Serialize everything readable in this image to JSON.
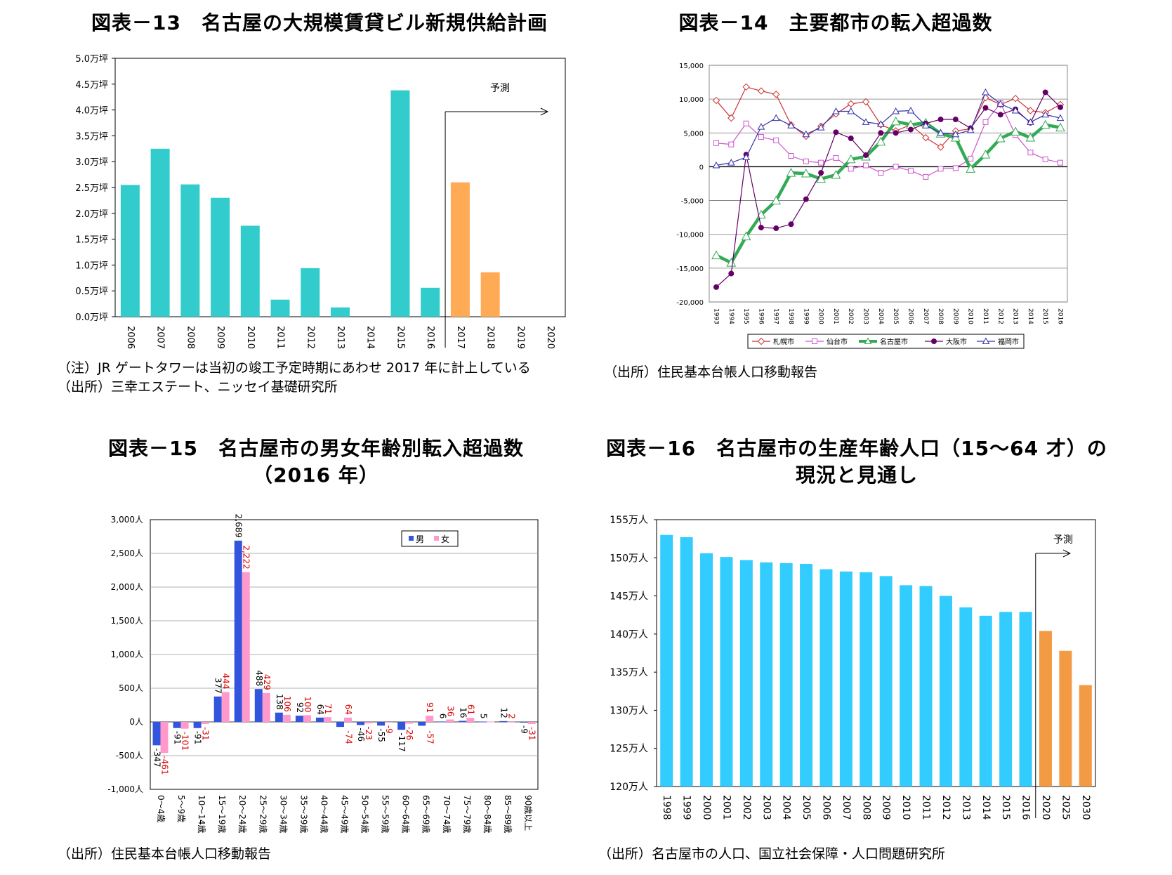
{
  "charts": [
    {
      "id": "fig13",
      "title": "図表－13　名古屋の大規模賃貸ビル新規供給計画",
      "forecast_label": "予測",
      "notes": [
        "（注）JR ゲートタワーは当初の竣工予定時期にあわせ 2017 年に計上している",
        "（出所）三幸エステート、ニッセイ基礎研究所"
      ]
    },
    {
      "id": "fig14",
      "title": "図表－14　主要都市の転入超過数",
      "notes": [
        "（出所）住民基本台帳人口移動報告"
      ]
    },
    {
      "id": "fig15",
      "title_lines": [
        "図表－15　名古屋市の男女年齢別転入超過数",
        "（2016 年）"
      ],
      "notes": [
        "（出所）住民基本台帳人口移動報告"
      ]
    },
    {
      "id": "fig16",
      "title_lines": [
        "図表－16　名古屋市の生産年齢人口（15～64 才）の",
        "現況と見通し"
      ],
      "forecast_label": "予測",
      "notes": [
        "（出所）名古屋市の人口、国立社会保障・人口問題研究所"
      ]
    }
  ],
  "chart_data": [
    {
      "type": "bar",
      "categories": [
        "2006",
        "2007",
        "2008",
        "2009",
        "2010",
        "2011",
        "2012",
        "2013",
        "2014",
        "2015",
        "2016",
        "2017",
        "2018",
        "2019",
        "2020"
      ],
      "values": [
        2.55,
        3.25,
        2.56,
        2.3,
        1.76,
        0.33,
        0.94,
        0.18,
        0,
        4.38,
        0.56,
        2.6,
        0.86,
        0,
        0
      ],
      "forecast_from": "2017",
      "yticks": [
        "0.0万坪",
        "0.5万坪",
        "1.0万坪",
        "1.5万坪",
        "2.0万坪",
        "2.5万坪",
        "3.0万坪",
        "3.5万坪",
        "4.0万坪",
        "4.5万坪",
        "5.0万坪"
      ],
      "ylim": [
        0,
        5
      ],
      "colors": {
        "actual": "#33CCCC",
        "forecast": "#FFAA55"
      }
    },
    {
      "type": "line",
      "x": [
        "1993",
        "1994",
        "1995",
        "1996",
        "1997",
        "1998",
        "1999",
        "2000",
        "2001",
        "2002",
        "2003",
        "2004",
        "2005",
        "2006",
        "2007",
        "2008",
        "2009",
        "2010",
        "2011",
        "2012",
        "2013",
        "2014",
        "2015",
        "2016"
      ],
      "ylim": [
        -20000,
        15000
      ],
      "yticks": [
        "-20,000",
        "-15,000",
        "-10,000",
        "-5,000",
        "0",
        "5,000",
        "10,000",
        "15,000"
      ],
      "legend_position": "bottom",
      "series": [
        {
          "name": "札幌市",
          "color": "#CC3333",
          "marker": "diamond",
          "values": [
            9800,
            7200,
            11800,
            11200,
            10700,
            6200,
            4500,
            6000,
            7800,
            9300,
            9600,
            6200,
            5300,
            6200,
            4300,
            2900,
            5300,
            5600,
            10200,
            9200,
            10100,
            8300,
            8000,
            9200
          ]
        },
        {
          "name": "仙台市",
          "color": "#CC55CC",
          "marker": "square",
          "values": [
            3500,
            3300,
            6400,
            4400,
            3900,
            1600,
            800,
            600,
            1300,
            -300,
            200,
            -900,
            0,
            -600,
            -1500,
            -300,
            -200,
            1200,
            6600,
            9400,
            4700,
            2100,
            1100,
            600
          ]
        },
        {
          "name": "名古屋市",
          "color": "#33AA55",
          "marker": "triangle",
          "values": [
            -13100,
            -14200,
            -10300,
            -7100,
            -5000,
            -900,
            -1000,
            -1800,
            -1200,
            1100,
            1500,
            3700,
            6700,
            6200,
            6500,
            4900,
            4300,
            -300,
            1800,
            4200,
            5200,
            4300,
            6200,
            5800
          ]
        },
        {
          "name": "大阪市",
          "color": "#660066",
          "marker": "circle",
          "values": [
            -17800,
            -15800,
            1800,
            -9000,
            -9100,
            -8500,
            -4800,
            -900,
            5100,
            4200,
            1700,
            5000,
            5000,
            5500,
            6400,
            7000,
            7000,
            5700,
            8700,
            7700,
            8500,
            6500,
            11000,
            8800
          ]
        },
        {
          "name": "福岡市",
          "color": "#3333AA",
          "marker": "triangle",
          "values": [
            200,
            600,
            1400,
            5900,
            7200,
            6100,
            4800,
            5800,
            8200,
            8200,
            6600,
            6300,
            8200,
            8300,
            6100,
            5000,
            4800,
            5400,
            11000,
            9300,
            8300,
            6600,
            7700,
            7200
          ]
        }
      ]
    },
    {
      "type": "bar",
      "categories": [
        "0～4歳",
        "5～9歳",
        "10～14歳",
        "15～19歳",
        "20～24歳",
        "25～29歳",
        "30～34歳",
        "35～39歳",
        "40～44歳",
        "45～49歳",
        "50～54歳",
        "55～59歳",
        "60～64歳",
        "65～69歳",
        "70～74歳",
        "75～79歳",
        "80～84歳",
        "85～89歳",
        "90歳以上"
      ],
      "yticks": [
        "-1,000人",
        "-500人",
        "0人",
        "500人",
        "1,000人",
        "1,500人",
        "2,000人",
        "2,500人",
        "3,000人"
      ],
      "ylim": [
        -1000,
        3000
      ],
      "legend_position": "top-right",
      "series": [
        {
          "name": "男",
          "color": "#3355DD",
          "label_color": "#000000",
          "values": [
            -347,
            -91,
            -91,
            377,
            2689,
            488,
            138,
            92,
            64,
            -74,
            -46,
            -55,
            -117,
            -57,
            6,
            16,
            5,
            12,
            -9
          ],
          "labels": [
            "-347",
            "-91",
            "-91",
            "377",
            "2,689",
            "488",
            "138",
            "92",
            "64",
            "",
            "-46",
            "-55",
            "-117",
            "",
            "6",
            "16",
            "5",
            "12",
            "-9"
          ]
        },
        {
          "name": "女",
          "color": "#FF99CC",
          "label_color": "#DD0000",
          "values": [
            -461,
            -101,
            -31,
            444,
            2222,
            429,
            106,
            100,
            71,
            64,
            -23,
            -9,
            -26,
            91,
            36,
            61,
            5,
            2,
            -31
          ],
          "labels": [
            "-461",
            "-101",
            "-31",
            "444",
            "2,222",
            "429",
            "106",
            "100",
            "71",
            "64",
            "-23",
            "-9",
            "-26",
            "91",
            "36",
            "61",
            "",
            "2",
            "-31"
          ],
          "extra_labels": [
            "-74",
            "-57"
          ]
        }
      ]
    },
    {
      "type": "bar",
      "categories": [
        "1998",
        "1999",
        "2000",
        "2001",
        "2002",
        "2003",
        "2004",
        "2005",
        "2006",
        "2007",
        "2008",
        "2009",
        "2010",
        "2011",
        "2012",
        "2013",
        "2014",
        "2015",
        "2016",
        "2020",
        "2025",
        "2030"
      ],
      "values": [
        153.0,
        152.7,
        150.6,
        150.1,
        149.7,
        149.4,
        149.3,
        149.2,
        148.5,
        148.2,
        148.1,
        147.6,
        146.4,
        146.3,
        145.0,
        143.5,
        142.4,
        142.9,
        142.9,
        140.4,
        137.8,
        133.3
      ],
      "forecast_from": "2020",
      "yticks": [
        "120万人",
        "125万人",
        "130万人",
        "135万人",
        "140万人",
        "145万人",
        "150万人",
        "155万人"
      ],
      "ylim": [
        120,
        155
      ],
      "colors": {
        "actual": "#33CCFF",
        "forecast": "#F39A45"
      }
    }
  ]
}
